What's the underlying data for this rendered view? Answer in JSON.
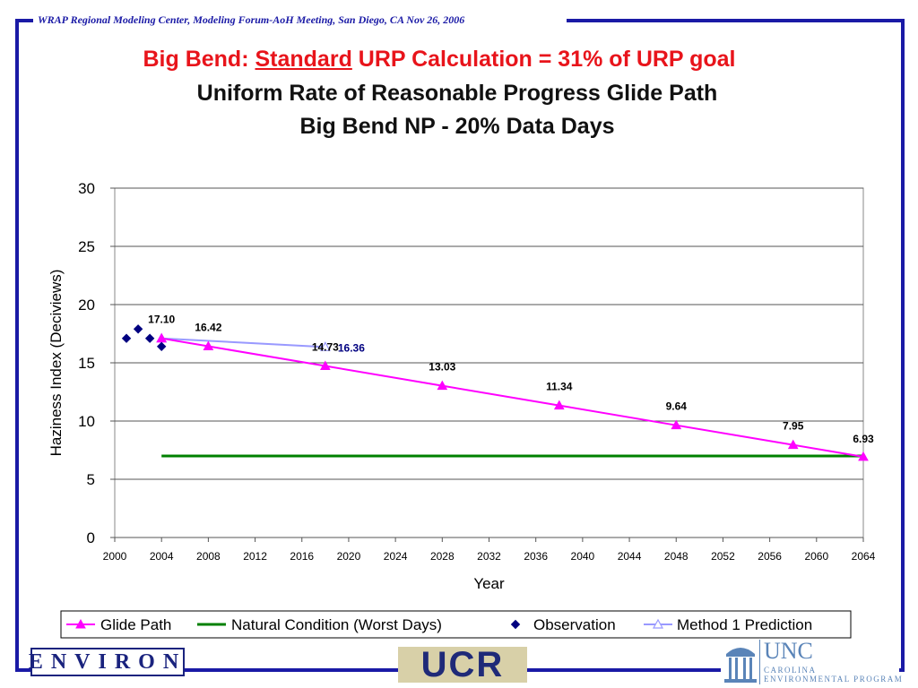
{
  "header": {
    "text": "WRAP Regional Modeling Center,  Modeling Forum-AoH Meeting, San Diego, CA  Nov 26, 2006"
  },
  "slide_title": {
    "prefix": "Big Bend: ",
    "underlined": "Standard",
    "suffix": " URP Calculation = 31% of URP goal"
  },
  "chart_data": {
    "type": "line",
    "title": "Uniform Rate of Reasonable Progress Glide Path",
    "subtitle": "Big Bend NP - 20% Data Days",
    "xlabel": "Year",
    "ylabel": "Haziness Index (Deciviews)",
    "xlim": [
      2000,
      2064
    ],
    "ylim": [
      0,
      30
    ],
    "xticks": [
      2000,
      2004,
      2008,
      2012,
      2016,
      2020,
      2024,
      2028,
      2032,
      2036,
      2040,
      2044,
      2048,
      2052,
      2056,
      2060,
      2064
    ],
    "yticks": [
      0,
      5,
      10,
      15,
      20,
      25,
      30
    ],
    "grid": "horizontal",
    "legend_position": "bottom",
    "series": [
      {
        "name": "Glide Path",
        "color": "#ff00ff",
        "marker": "triangle",
        "points": [
          [
            2004,
            17.1
          ],
          [
            2008,
            16.42
          ],
          [
            2018,
            14.73
          ],
          [
            2028,
            13.03
          ],
          [
            2038,
            11.34
          ],
          [
            2048,
            9.64
          ],
          [
            2058,
            7.95
          ],
          [
            2064,
            6.93
          ]
        ],
        "labels": [
          "17.10",
          "16.42",
          "14.73",
          "13.03",
          "11.34",
          "9.64",
          "7.95",
          "6.93"
        ]
      },
      {
        "name": "Natural Condition (Worst Days)",
        "color": "#008000",
        "marker": "none",
        "points": [
          [
            2004,
            7.0
          ],
          [
            2064,
            7.0
          ]
        ]
      },
      {
        "name": "Observation",
        "color": "#000080",
        "marker": "diamond",
        "points": [
          [
            2001,
            17.1
          ],
          [
            2002,
            17.9
          ],
          [
            2003,
            17.1
          ],
          [
            2004,
            16.4
          ]
        ]
      },
      {
        "name": "Method 1 Prediction",
        "color": "#9999ff",
        "marker": "triangle-open",
        "points": [
          [
            2004,
            17.1
          ],
          [
            2018,
            16.36
          ]
        ],
        "labels": [
          "",
          "16.36"
        ]
      }
    ]
  },
  "logos": {
    "environ": "ENVIRON",
    "ucr": "UCR",
    "unc_name": "UNC",
    "unc_sub1": "CAROLINA",
    "unc_sub2": "ENVIRONMENTAL PROGRAM"
  },
  "colors": {
    "frame": "#1a1aa6",
    "title_red": "#e8141b"
  }
}
